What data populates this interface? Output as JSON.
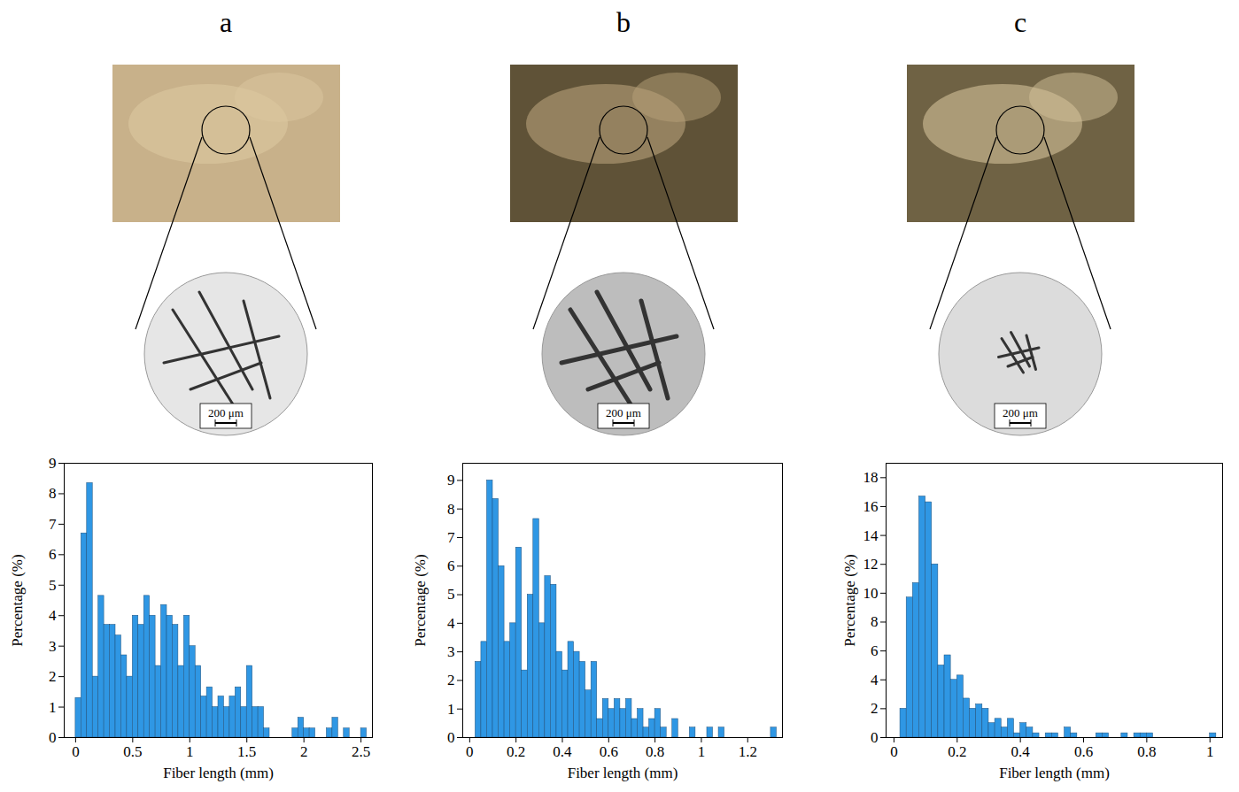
{
  "chart_data": [
    {
      "type": "histogram",
      "title": "a",
      "annotations": [
        "200 μm"
      ],
      "xlabel": "Fiber length (mm)",
      "ylabel": "Percentage (%)",
      "color": "#2f97e4",
      "grid": false,
      "bins": [
        0,
        0.05,
        0.1,
        0.15,
        0.2,
        0.25,
        0.3,
        0.35,
        0.4,
        0.45,
        0.5,
        0.55,
        0.6,
        0.65,
        0.7,
        0.75,
        0.8,
        0.85,
        0.9,
        0.95,
        1,
        1.05,
        1.1,
        1.15,
        1.2,
        1.25,
        1.3,
        1.35,
        1.4,
        1.45,
        1.5,
        1.55,
        1.6,
        1.65,
        1.7,
        1.75,
        1.8,
        1.85,
        1.9,
        1.95,
        2,
        2.05,
        2.1,
        2.15,
        2.2,
        2.25,
        2.3,
        2.35,
        2.4,
        2.45,
        2.5,
        2.55
      ],
      "values": [
        1.3,
        6.7,
        8.35,
        2.0,
        4.65,
        3.7,
        3.7,
        3.35,
        2.7,
        2.0,
        4.0,
        3.7,
        4.65,
        4.0,
        2.35,
        4.35,
        4.0,
        3.7,
        2.35,
        4.0,
        3.0,
        2.35,
        1.35,
        1.65,
        1.0,
        1.35,
        1.0,
        1.35,
        1.65,
        1.0,
        2.35,
        1.0,
        1.0,
        0.3,
        0,
        0,
        0,
        0,
        0.3,
        0.65,
        0.3,
        0.3,
        0,
        0,
        0.3,
        0.65,
        0,
        0.3,
        0,
        0,
        0.3
      ],
      "xlim": [
        -0.1,
        2.6
      ],
      "xticks": [
        0,
        0.5,
        1,
        1.5,
        2,
        2.5
      ],
      "ylim": [
        0,
        9
      ],
      "yticks": [
        0,
        1,
        2,
        3,
        4,
        5,
        6,
        7,
        8,
        9
      ]
    },
    {
      "type": "histogram",
      "title": "b",
      "annotations": [
        "200 μm"
      ],
      "xlabel": "Fiber length (mm)",
      "ylabel": "Percentage (%)",
      "color": "#2f97e4",
      "grid": false,
      "bins": [
        0.025,
        0.05,
        0.075,
        0.1,
        0.125,
        0.15,
        0.175,
        0.2,
        0.225,
        0.25,
        0.275,
        0.3,
        0.325,
        0.35,
        0.375,
        0.4,
        0.425,
        0.45,
        0.475,
        0.5,
        0.525,
        0.55,
        0.575,
        0.6,
        0.625,
        0.65,
        0.675,
        0.7,
        0.725,
        0.75,
        0.775,
        0.8,
        0.825,
        0.85,
        0.875,
        0.9,
        0.925,
        0.95,
        0.975,
        1.0,
        1.025,
        1.05,
        1.075,
        1.1,
        1.125,
        1.15,
        1.175,
        1.2,
        1.225,
        1.25,
        1.275,
        1.3,
        1.325
      ],
      "values": [
        2.65,
        3.35,
        9.0,
        8.35,
        6.0,
        3.35,
        4.0,
        6.65,
        2.35,
        5.0,
        7.65,
        4.0,
        5.65,
        5.35,
        3.0,
        2.35,
        3.35,
        3.0,
        2.65,
        1.65,
        2.65,
        0.65,
        1.35,
        1.0,
        1.35,
        1.0,
        1.35,
        0.65,
        1.0,
        0.35,
        0.65,
        1.0,
        0.35,
        0,
        0.65,
        0,
        0,
        0.35,
        0,
        0,
        0.35,
        0,
        0.35,
        0,
        0,
        0,
        0,
        0,
        0,
        0,
        0,
        0.35
      ],
      "xlim": [
        -0.03,
        1.35
      ],
      "xticks": [
        0,
        0.2,
        0.4,
        0.6,
        0.8,
        1,
        1.2
      ],
      "ylim": [
        0,
        9.6
      ],
      "yticks": [
        0,
        1,
        2,
        3,
        4,
        5,
        6,
        7,
        8,
        9
      ]
    },
    {
      "type": "histogram",
      "title": "c",
      "annotations": [
        "200 μm"
      ],
      "xlabel": "Fiber length (mm)",
      "ylabel": "Percentage (%)",
      "color": "#2f97e4",
      "grid": false,
      "bins": [
        0.02,
        0.04,
        0.06,
        0.08,
        0.1,
        0.12,
        0.14,
        0.16,
        0.18,
        0.2,
        0.22,
        0.24,
        0.26,
        0.28,
        0.3,
        0.32,
        0.34,
        0.36,
        0.38,
        0.4,
        0.42,
        0.44,
        0.46,
        0.48,
        0.5,
        0.52,
        0.54,
        0.56,
        0.58,
        0.6,
        0.62,
        0.64,
        0.66,
        0.68,
        0.7,
        0.72,
        0.74,
        0.76,
        0.78,
        0.8,
        0.82,
        0.84,
        0.86,
        0.88,
        0.9,
        0.92,
        0.94,
        0.96,
        0.98,
        1.0,
        1.02
      ],
      "values": [
        2.0,
        9.7,
        10.7,
        16.7,
        16.3,
        12.0,
        5.0,
        5.7,
        4.0,
        4.3,
        2.7,
        2.0,
        2.3,
        2.0,
        1.0,
        1.3,
        0.7,
        1.3,
        0.3,
        1.0,
        0.7,
        0.3,
        0,
        0.3,
        0.3,
        0,
        0.7,
        0.3,
        0,
        0,
        0,
        0.3,
        0.3,
        0,
        0,
        0.3,
        0,
        0.3,
        0.3,
        0.3,
        0,
        0,
        0,
        0,
        0,
        0,
        0,
        0,
        0,
        0.3
      ],
      "xlim": [
        -0.025,
        1.04
      ],
      "xticks": [
        0,
        0.2,
        0.4,
        0.6,
        0.8,
        1
      ],
      "ylim": [
        0,
        19
      ],
      "yticks": [
        0,
        2,
        4,
        6,
        8,
        10,
        12,
        14,
        16,
        18
      ]
    }
  ]
}
